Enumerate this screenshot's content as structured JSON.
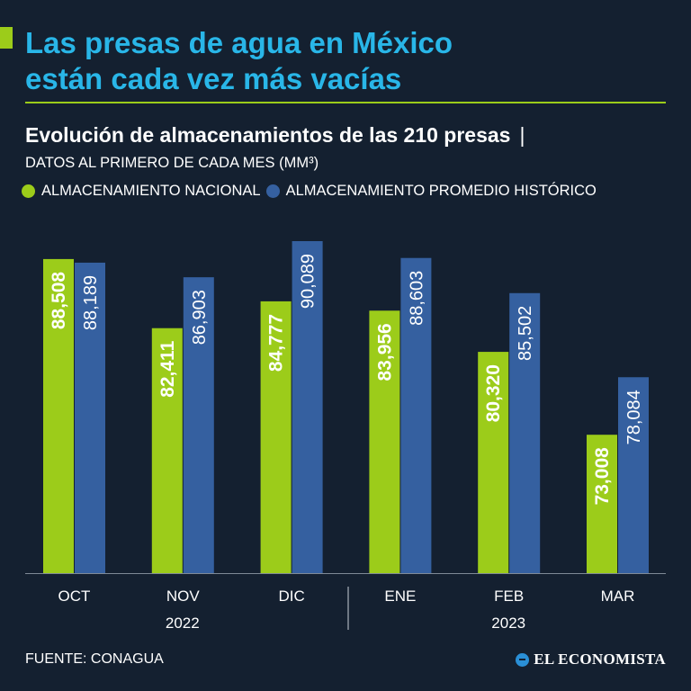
{
  "header": {
    "title_line1": "Las presas de agua en México",
    "title_line2": "están cada vez más vacías",
    "subtitle": "Evolución de almacenamientos de las 210 presas",
    "subtitle_sep": "|",
    "note": "DATOS AL PRIMERO DE CADA MES (MM³)"
  },
  "colors": {
    "background": "#142030",
    "title": "#29b6e8",
    "nacional": "#9ccc1a",
    "historico": "#3560a0"
  },
  "legend": [
    {
      "label": "ALMACENAMIENTO NACIONAL",
      "color": "#9ccc1a"
    },
    {
      "label": "ALMACENAMIENTO PROMEDIO HISTÓRICO",
      "color": "#3560a0"
    }
  ],
  "chart_data": {
    "type": "bar",
    "categories": [
      "OCT",
      "NOV",
      "DIC",
      "ENE",
      "FEB",
      "MAR"
    ],
    "year_groups": [
      {
        "label": "2022",
        "categories": [
          "OCT",
          "NOV",
          "DIC"
        ]
      },
      {
        "label": "2023",
        "categories": [
          "ENE",
          "FEB",
          "MAR"
        ]
      }
    ],
    "series": [
      {
        "name": "ALMACENAMIENTO NACIONAL",
        "color": "#9ccc1a",
        "values": [
          88508,
          82411,
          84777,
          83956,
          80320,
          73008
        ],
        "labels": [
          "88,508",
          "82,411",
          "84,777",
          "83,956",
          "80,320",
          "73,008"
        ]
      },
      {
        "name": "ALMACENAMIENTO PROMEDIO HISTÓRICO",
        "color": "#3560a0",
        "values": [
          88189,
          86903,
          90089,
          88603,
          85502,
          78084
        ],
        "labels": [
          "88,189",
          "86,903",
          "90,089",
          "88,603",
          "85,502",
          "78,084"
        ]
      }
    ],
    "ylim": [
      0,
      92000
    ],
    "grid": false,
    "legend_position": "top-left"
  },
  "footer": {
    "source": "FUENTE: CONAGUA",
    "brand": "EL ECONOMISTA"
  }
}
